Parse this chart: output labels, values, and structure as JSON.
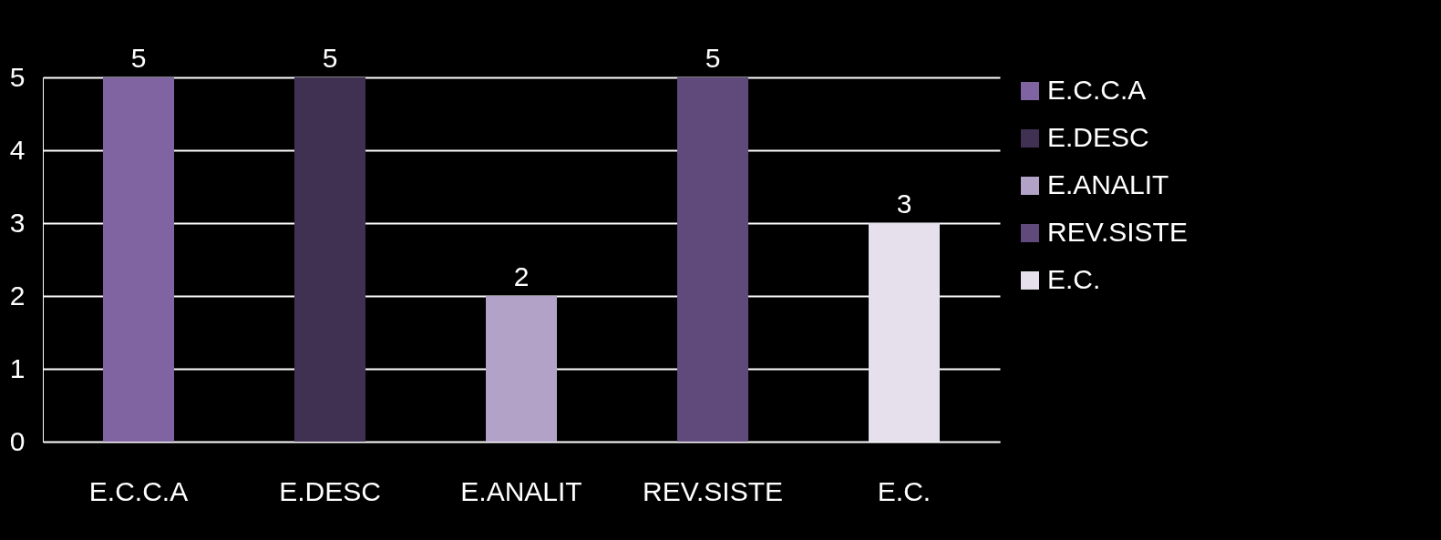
{
  "chart_data": {
    "type": "bar",
    "categories": [
      "E.C.C.A",
      "E.DESC",
      "E.ANALIT",
      "REV.SISTE",
      "E.C."
    ],
    "series": [
      {
        "name": "E.C.C.A",
        "color": "#8064a2",
        "values": [
          5,
          null,
          null,
          null,
          null
        ]
      },
      {
        "name": "E.DESC",
        "color": "#403152",
        "values": [
          null,
          5,
          null,
          null,
          null
        ]
      },
      {
        "name": "E.ANALIT",
        "color": "#b3a2c7",
        "values": [
          null,
          null,
          2,
          null,
          null
        ]
      },
      {
        "name": "REV.SISTE",
        "color": "#604a7b",
        "values": [
          null,
          null,
          null,
          5,
          null
        ]
      },
      {
        "name": "E.C.",
        "color": "#e6e0ec",
        "values": [
          null,
          null,
          null,
          null,
          3
        ]
      }
    ],
    "ylim": [
      0,
      5
    ],
    "yticks": [
      0,
      1,
      2,
      3,
      4,
      5
    ],
    "grid": "y",
    "legend": "right",
    "data_labels": true
  }
}
